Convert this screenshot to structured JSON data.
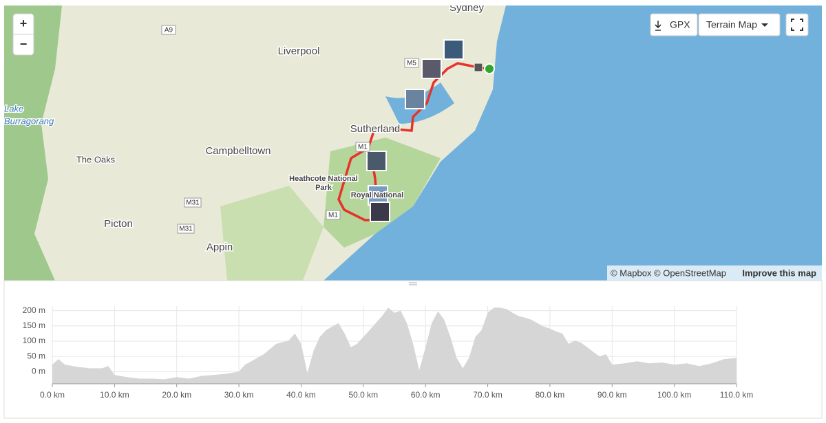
{
  "map": {
    "places": [
      "Sydney",
      "Liverpool",
      "Sutherland",
      "Campbelltown",
      "The Oaks",
      "Heathcote National",
      "Park",
      "Royal National",
      "Picton",
      "Appin",
      "Lake",
      "Burragorang"
    ],
    "roads": [
      "A9",
      "M5",
      "M1",
      "M31",
      "M31",
      "M1"
    ]
  },
  "controls": {
    "zoom_in": "+",
    "zoom_out": "−",
    "gpx": "GPX",
    "map_type": "Terrain Map",
    "attribution": "© Mapbox © OpenStreetMap",
    "improve": "Improve this map"
  },
  "chart_data": {
    "type": "area",
    "color": "#d6d6d6",
    "x": [
      0,
      1,
      2,
      4,
      6,
      8,
      9,
      10,
      12,
      14,
      16,
      18,
      20,
      22,
      24,
      26,
      28,
      30,
      31,
      32,
      34,
      36,
      38,
      39,
      40,
      41,
      42,
      43,
      44,
      45,
      46,
      47,
      48,
      49,
      50,
      51,
      52,
      53,
      54,
      55,
      56,
      57,
      58,
      59,
      60,
      61,
      62,
      63,
      64,
      65,
      66,
      67,
      68,
      69,
      70,
      71,
      72,
      73,
      74,
      75,
      76,
      77,
      78,
      79,
      80,
      81,
      82,
      83,
      84,
      85,
      86,
      87,
      88,
      89,
      90,
      92,
      94,
      96,
      98,
      100,
      102,
      104,
      106,
      108,
      110
    ],
    "values": [
      23,
      41,
      23,
      16,
      11,
      11,
      18,
      -11,
      -18,
      -23,
      -23,
      -25,
      -18,
      -23,
      -14,
      -11,
      -7,
      0,
      23,
      34,
      57,
      91,
      102,
      125,
      91,
      -5,
      68,
      114,
      136,
      148,
      159,
      125,
      80,
      91,
      114,
      136,
      159,
      182,
      210,
      193,
      200,
      159,
      91,
      5,
      80,
      159,
      198,
      170,
      114,
      45,
      11,
      45,
      114,
      136,
      193,
      210,
      210,
      205,
      193,
      182,
      177,
      170,
      159,
      148,
      141,
      132,
      125,
      91,
      102,
      95,
      80,
      64,
      50,
      57,
      23,
      27,
      34,
      27,
      30,
      23,
      27,
      18,
      27,
      41,
      45
    ],
    "xlim": [
      0,
      110
    ],
    "ylim": [
      -40,
      215
    ],
    "xticks": [
      {
        "value": 0,
        "label": "0.0 km"
      },
      {
        "value": 10,
        "label": "10.0 km"
      },
      {
        "value": 20,
        "label": "20.0 km"
      },
      {
        "value": 30,
        "label": "30.0 km"
      },
      {
        "value": 40,
        "label": "40.0 km"
      },
      {
        "value": 50,
        "label": "50.0 km"
      },
      {
        "value": 60,
        "label": "60.0 km"
      },
      {
        "value": 70,
        "label": "70.0 km"
      },
      {
        "value": 80,
        "label": "80.0 km"
      },
      {
        "value": 90,
        "label": "90.0 km"
      },
      {
        "value": 100,
        "label": "100.0 km"
      },
      {
        "value": 110,
        "label": "110.0 km"
      }
    ],
    "yticks": [
      {
        "value": 0,
        "label": "0 m"
      },
      {
        "value": 50,
        "label": "50 m"
      },
      {
        "value": 100,
        "label": "100 m"
      },
      {
        "value": 150,
        "label": "150 m"
      },
      {
        "value": 200,
        "label": "200 m"
      }
    ],
    "grid": true
  }
}
